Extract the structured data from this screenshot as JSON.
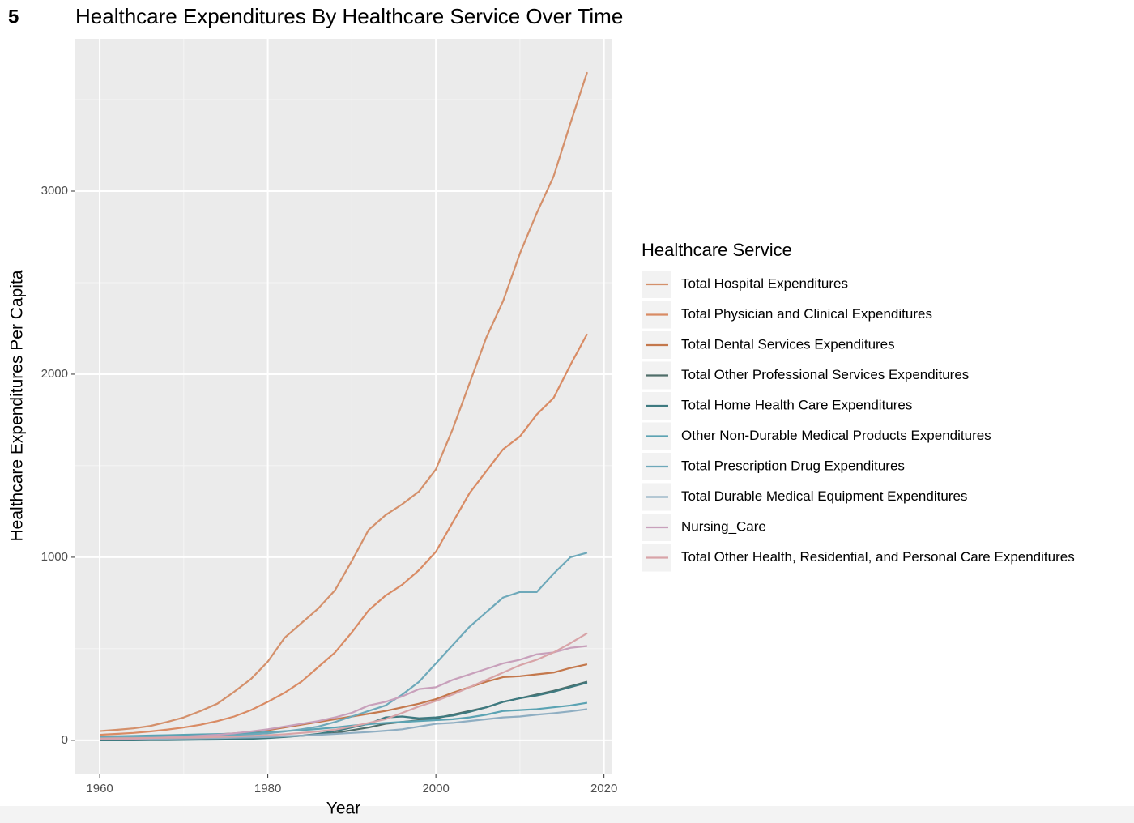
{
  "label": "5",
  "chart_data": {
    "type": "line",
    "title": "Healthcare Expenditures By Healthcare Service Over Time",
    "x_label": "Year",
    "y_label": "Healthcare Expenditures Per Capita",
    "legend_title": "Healthcare Service",
    "legend": "right",
    "grid": true,
    "x": [
      1960,
      1962,
      1964,
      1966,
      1968,
      1970,
      1972,
      1974,
      1976,
      1978,
      1980,
      1982,
      1984,
      1986,
      1988,
      1990,
      1992,
      1994,
      1996,
      1998,
      2000,
      2002,
      2004,
      2006,
      2008,
      2010,
      2012,
      2014,
      2016,
      2018
    ],
    "xlim": [
      1957.1,
      2020.9
    ],
    "xticks": [
      1960,
      1980,
      2000,
      2020
    ],
    "x_minor_ticks": [
      1970,
      1990,
      2010
    ],
    "ylim": [
      -182,
      3832
    ],
    "yticks": [
      0,
      1000,
      2000,
      3000
    ],
    "y_minor_ticks": [
      500,
      1500,
      2500,
      3500
    ],
    "series": [
      {
        "name": "Total Hospital Expenditures",
        "color": "#d4906b",
        "values": [
          50,
          57,
          65,
          78,
          100,
          125,
          160,
          200,
          265,
          335,
          430,
          560,
          640,
          720,
          820,
          980,
          1150,
          1230,
          1290,
          1360,
          1480,
          1700,
          1950,
          2200,
          2400,
          2660,
          2880,
          3080,
          3370,
          3650
        ]
      },
      {
        "name": "Total Physician and Clinical Expenditures",
        "color": "#d98b64",
        "values": [
          30,
          35,
          40,
          48,
          58,
          70,
          85,
          105,
          130,
          165,
          210,
          260,
          320,
          400,
          480,
          590,
          710,
          790,
          850,
          930,
          1030,
          1190,
          1350,
          1470,
          1590,
          1660,
          1780,
          1870,
          2050,
          2220
        ]
      },
      {
        "name": "Total Dental Services Expenditures",
        "color": "#c4784c",
        "values": [
          10,
          12,
          14,
          17,
          20,
          24,
          28,
          32,
          38,
          45,
          55,
          70,
          85,
          100,
          115,
          130,
          145,
          160,
          180,
          200,
          225,
          260,
          290,
          320,
          345,
          350,
          360,
          370,
          395,
          415
        ]
      },
      {
        "name": "Total Other Professional Services Expenditures",
        "color": "#4f6e6a",
        "values": [
          2,
          3,
          3,
          4,
          5,
          6,
          7,
          8,
          10,
          12,
          15,
          20,
          25,
          30,
          40,
          55,
          70,
          90,
          100,
          110,
          120,
          140,
          160,
          180,
          210,
          230,
          250,
          270,
          295,
          320
        ]
      },
      {
        "name": "Total Home Health Care Expenditures",
        "color": "#3e7a80",
        "values": [
          0,
          0,
          0,
          1,
          1,
          2,
          3,
          4,
          5,
          8,
          12,
          18,
          25,
          35,
          50,
          70,
          90,
          125,
          130,
          120,
          125,
          135,
          155,
          180,
          210,
          230,
          245,
          265,
          290,
          315
        ]
      },
      {
        "name": "Other Non-Durable Medical Products Expenditures",
        "color": "#5ba3b3",
        "values": [
          20,
          22,
          24,
          26,
          28,
          30,
          32,
          34,
          36,
          40,
          44,
          50,
          55,
          62,
          70,
          80,
          88,
          95,
          100,
          105,
          110,
          115,
          125,
          140,
          160,
          165,
          170,
          180,
          190,
          205
        ]
      },
      {
        "name": "Total Prescription Drug Expenditures",
        "color": "#6ea9ba",
        "values": [
          15,
          16,
          17,
          18,
          19,
          20,
          22,
          24,
          27,
          32,
          38,
          48,
          60,
          75,
          100,
          130,
          160,
          190,
          250,
          320,
          420,
          520,
          620,
          700,
          780,
          810,
          810,
          910,
          1000,
          1025
        ]
      },
      {
        "name": "Total Durable Medical Equipment Expenditures",
        "color": "#8faec2",
        "values": [
          5,
          6,
          7,
          8,
          9,
          10,
          11,
          12,
          14,
          16,
          18,
          22,
          25,
          30,
          35,
          40,
          45,
          52,
          60,
          75,
          90,
          95,
          105,
          115,
          125,
          130,
          140,
          148,
          158,
          170
        ]
      },
      {
        "name": "Nursing_Care",
        "color": "#c8a0bb",
        "values": [
          5,
          6,
          8,
          12,
          16,
          20,
          25,
          30,
          38,
          48,
          60,
          75,
          90,
          105,
          125,
          150,
          190,
          210,
          240,
          280,
          290,
          330,
          360,
          390,
          420,
          440,
          470,
          480,
          505,
          515
        ]
      },
      {
        "name": "Total Other Health, Residential, and Personal Care Expenditures",
        "color": "#d8a4a8",
        "values": [
          10,
          11,
          12,
          13,
          14,
          15,
          16,
          18,
          20,
          24,
          28,
          33,
          40,
          48,
          58,
          75,
          95,
          115,
          150,
          185,
          215,
          250,
          290,
          330,
          370,
          410,
          440,
          480,
          530,
          585
        ]
      }
    ]
  }
}
